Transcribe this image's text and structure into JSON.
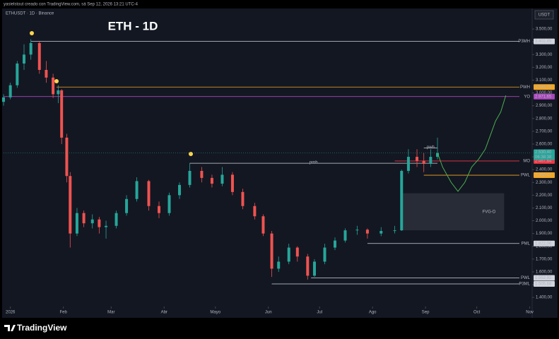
{
  "header": {
    "author_line": "yasielstout creado con TradingView.com, sá Sep 12, 2026 13:21 UTC-4",
    "symbol_line": "ETHUSDT · 1D · Binance",
    "currency": "USDT",
    "brand": "TradingView"
  },
  "chart_data": {
    "type": "candlestick",
    "title": "ETH - 1D",
    "ylim": [
      1340,
      3580
    ],
    "yticks": [
      {
        "value": 1400,
        "label": "1.400,00"
      },
      {
        "value": 1500,
        "label": "1.500,00"
      },
      {
        "value": 1600,
        "label": "1.600,00"
      },
      {
        "value": 1700,
        "label": "1.700,00"
      },
      {
        "value": 1800,
        "label": "1.800,00"
      },
      {
        "value": 1900,
        "label": "1.900,00"
      },
      {
        "value": 2000,
        "label": "2.000,00"
      },
      {
        "value": 2100,
        "label": "2.100,00"
      },
      {
        "value": 2200,
        "label": "2.200,00"
      },
      {
        "value": 2300,
        "label": "2.300,00"
      },
      {
        "value": 2400,
        "label": "2.400,00"
      },
      {
        "value": 2500,
        "label": "2.500,00"
      },
      {
        "value": 2600,
        "label": "2.600,00"
      },
      {
        "value": 2700,
        "label": "2.700,00"
      },
      {
        "value": 2800,
        "label": "2.800,00"
      },
      {
        "value": 2900,
        "label": "2.900,00"
      },
      {
        "value": 3000,
        "label": "3.000,00"
      },
      {
        "value": 3100,
        "label": "3.100,00"
      },
      {
        "value": 3200,
        "label": "3.200,00"
      },
      {
        "value": 3300,
        "label": "3.300,00"
      },
      {
        "value": 3400,
        "label": "3.400,00"
      },
      {
        "value": 3500,
        "label": "3.500,00"
      }
    ],
    "xlim": [
      -4,
      305
    ],
    "xticks": [
      {
        "value": 0,
        "label": "2026"
      },
      {
        "value": 31,
        "label": "Feb"
      },
      {
        "value": 59,
        "label": "Mar"
      },
      {
        "value": 90,
        "label": "Abr"
      },
      {
        "value": 120,
        "label": "Mayo"
      },
      {
        "value": 151,
        "label": "Jun"
      },
      {
        "value": 181,
        "label": "Jul"
      },
      {
        "value": 212,
        "label": "Ago"
      },
      {
        "value": 243,
        "label": "Sep"
      },
      {
        "value": 273,
        "label": "Oct"
      },
      {
        "value": 304,
        "label": "Nov"
      }
    ],
    "grid": false,
    "candles": {
      "up_color": "#26a69a",
      "down_color": "#ef5350",
      "x": [
        -4,
        0,
        4,
        8,
        12,
        17,
        21,
        25,
        28,
        30,
        33,
        35,
        39,
        43,
        48,
        52,
        56,
        62,
        68,
        74,
        81,
        87,
        93,
        99,
        105,
        112,
        118,
        124,
        130,
        136,
        143,
        148,
        153,
        157,
        163,
        168,
        174,
        178,
        184,
        190,
        196,
        203,
        209,
        217,
        225,
        229,
        233,
        238,
        242,
        246,
        250
      ],
      "open": [
        2930,
        2965,
        3060,
        3230,
        3300,
        3390,
        3180,
        3120,
        2990,
        3020,
        2650,
        2350,
        1900,
        2060,
        1980,
        2010,
        1950,
        1960,
        2060,
        2170,
        2310,
        2115,
        2060,
        2200,
        2280,
        2390,
        2335,
        2290,
        2360,
        2225,
        2115,
        2035,
        1900,
        1625,
        1680,
        1790,
        1720,
        1570,
        1680,
        1790,
        1845,
        1925,
        1930,
        1900,
        1920,
        1925,
        2390,
        2500,
        2470,
        2445,
        2500
      ],
      "high": [
        2990,
        3080,
        3250,
        3380,
        3420,
        3400,
        3250,
        3150,
        3060,
        3030,
        2680,
        2380,
        2100,
        2080,
        2050,
        2030,
        2000,
        2080,
        2200,
        2340,
        2320,
        2150,
        2220,
        2300,
        2450,
        2420,
        2360,
        2420,
        2380,
        2250,
        2140,
        2050,
        1920,
        1720,
        1820,
        1800,
        1740,
        1700,
        1820,
        1870,
        1940,
        1960,
        1940,
        1950,
        1960,
        2400,
        2560,
        2560,
        2530,
        2560,
        2650
      ],
      "low": [
        2900,
        2950,
        3040,
        3180,
        3260,
        3150,
        3080,
        2960,
        2920,
        2600,
        2300,
        1790,
        1880,
        1950,
        1940,
        1900,
        1860,
        1940,
        2040,
        2150,
        2080,
        2020,
        2040,
        2170,
        2260,
        2300,
        2260,
        2270,
        2200,
        2090,
        2010,
        1880,
        1560,
        1600,
        1660,
        1680,
        1540,
        1560,
        1660,
        1770,
        1830,
        1890,
        1860,
        1880,
        1900,
        1920,
        2370,
        2420,
        2380,
        2420,
        2480
      ],
      "close": [
        2965,
        3060,
        3230,
        3300,
        3390,
        3180,
        3120,
        2990,
        3020,
        2650,
        2350,
        1900,
        2060,
        1980,
        2010,
        1950,
        1960,
        2060,
        2170,
        2310,
        2115,
        2060,
        2200,
        2280,
        2390,
        2335,
        2290,
        2360,
        2225,
        2115,
        2035,
        1900,
        1625,
        1680,
        1790,
        1720,
        1570,
        1680,
        1790,
        1845,
        1925,
        1930,
        1900,
        1920,
        1925,
        2390,
        2500,
        2470,
        2445,
        2500,
        2530
      ]
    },
    "levels": [
      {
        "name": "P3MH",
        "value": 3402.89,
        "value_label": "3.402,89",
        "color": "#d1d4dc",
        "x_start": 12
      },
      {
        "name": "PWH",
        "value": 3045.78,
        "value_label": "3.045,78",
        "color": "#f5a623",
        "x_start": 27
      },
      {
        "name": "YO",
        "value": 2971.65,
        "value_label": "2.971,65",
        "color": "#ab47bc",
        "x_start": -4
      },
      {
        "name": "MO",
        "value": 2467.64,
        "value_label": "2.467,64",
        "color": "#f23645",
        "x_start": 225
      },
      {
        "name": "PWL",
        "value": 2356.41,
        "value_label": "2.356,41",
        "color": "#f5a623",
        "x_start": 242
      },
      {
        "name": "PML",
        "value": 1822.06,
        "value_label": "1.822,06",
        "color": "#d1d4dc",
        "x_start": 209
      },
      {
        "name": "PWL",
        "value": 1552.92,
        "value_label": "1.552,92",
        "color": "#d1d4dc",
        "x_start": 176
      },
      {
        "name": "P3ML",
        "value": 1505.68,
        "value_label": "1.505,68",
        "color": "#d1d4dc",
        "x_start": 153
      }
    ],
    "inline_levels": [
      {
        "name": "pmh",
        "value": 2450,
        "x_start": 105,
        "x_end": 250
      },
      {
        "name": "pwh",
        "value": 2570,
        "x_start": 242,
        "x_end": 250
      }
    ],
    "last_price": {
      "value": 2530.4,
      "label": "2.530,40",
      "countdown": "06:38:38",
      "color": "#26a69a"
    },
    "zone": {
      "label": "FVG-D",
      "x_start": 229,
      "x_end": 289,
      "top": 2215,
      "bottom": 1925
    },
    "projection": {
      "color": "#4caf50",
      "x": [
        250,
        253,
        258,
        262,
        266,
        270,
        274,
        278,
        281,
        284,
        287,
        290
      ],
      "values": [
        2530,
        2420,
        2300,
        2230,
        2300,
        2420,
        2480,
        2560,
        2670,
        2780,
        2850,
        2980
      ]
    }
  }
}
